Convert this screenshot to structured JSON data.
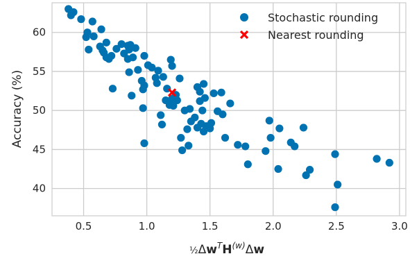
{
  "chart_data": {
    "type": "scatter",
    "xlabel": "½ΔwᵀH⁽ʷ⁾Δw",
    "ylabel": "Accuracy (%)",
    "xlim": [
      0.25,
      3.05
    ],
    "ylim": [
      36.5,
      63.8
    ],
    "x_ticks": [
      0.5,
      1.0,
      1.5,
      2.0,
      2.5,
      3.0
    ],
    "x_tick_labels": [
      "0.5",
      "1.0",
      "1.5",
      "2.0",
      "2.5",
      "3.0"
    ],
    "y_ticks": [
      40,
      45,
      50,
      55,
      60
    ],
    "y_tick_labels": [
      "40",
      "45",
      "50",
      "55",
      "60"
    ],
    "grid": true,
    "legend_position": "top-right",
    "series": [
      {
        "name": "Stochastic rounding",
        "marker": "circle",
        "color": "#0072b2",
        "points": [
          [
            0.38,
            63.0
          ],
          [
            0.4,
            62.2
          ],
          [
            0.42,
            62.6
          ],
          [
            0.48,
            61.7
          ],
          [
            0.52,
            59.4
          ],
          [
            0.53,
            60.0
          ],
          [
            0.54,
            57.8
          ],
          [
            0.57,
            61.4
          ],
          [
            0.58,
            59.5
          ],
          [
            0.63,
            58.2
          ],
          [
            0.64,
            60.4
          ],
          [
            0.65,
            57.7
          ],
          [
            0.66,
            57.4
          ],
          [
            0.68,
            58.7
          ],
          [
            0.68,
            56.8
          ],
          [
            0.7,
            56.6
          ],
          [
            0.72,
            57.0
          ],
          [
            0.73,
            52.8
          ],
          [
            0.76,
            57.9
          ],
          [
            0.8,
            58.5
          ],
          [
            0.82,
            57.3
          ],
          [
            0.85,
            58.3
          ],
          [
            0.85,
            56.6
          ],
          [
            0.86,
            57.8
          ],
          [
            0.86,
            54.9
          ],
          [
            0.87,
            58.4
          ],
          [
            0.88,
            51.9
          ],
          [
            0.89,
            56.8
          ],
          [
            0.91,
            58.0
          ],
          [
            0.93,
            55.2
          ],
          [
            0.96,
            53.8
          ],
          [
            0.97,
            52.7
          ],
          [
            0.97,
            50.3
          ],
          [
            0.98,
            53.2
          ],
          [
            0.98,
            57.0
          ],
          [
            0.98,
            45.8
          ],
          [
            1.01,
            55.8
          ],
          [
            1.04,
            55.5
          ],
          [
            1.07,
            54.2
          ],
          [
            1.08,
            53.5
          ],
          [
            1.09,
            55.1
          ],
          [
            1.11,
            49.4
          ],
          [
            1.12,
            48.2
          ],
          [
            1.13,
            54.3
          ],
          [
            1.15,
            51.3
          ],
          [
            1.16,
            52.8
          ],
          [
            1.18,
            50.7
          ],
          [
            1.19,
            56.5
          ],
          [
            1.2,
            55.7
          ],
          [
            1.2,
            51.5
          ],
          [
            1.21,
            50.6
          ],
          [
            1.23,
            52.0
          ],
          [
            1.24,
            51.3
          ],
          [
            1.26,
            54.1
          ],
          [
            1.27,
            46.5
          ],
          [
            1.28,
            44.9
          ],
          [
            1.3,
            50.0
          ],
          [
            1.32,
            47.6
          ],
          [
            1.33,
            45.5
          ],
          [
            1.34,
            50.2
          ],
          [
            1.35,
            48.6
          ],
          [
            1.38,
            49.1
          ],
          [
            1.4,
            53.0
          ],
          [
            1.4,
            47.8
          ],
          [
            1.42,
            52.4
          ],
          [
            1.42,
            51.2
          ],
          [
            1.43,
            48.3
          ],
          [
            1.44,
            50.0
          ],
          [
            1.45,
            47.3
          ],
          [
            1.45,
            53.4
          ],
          [
            1.46,
            51.6
          ],
          [
            1.47,
            48.0
          ],
          [
            1.5,
            47.7
          ],
          [
            1.51,
            48.4
          ],
          [
            1.53,
            52.2
          ],
          [
            1.56,
            49.9
          ],
          [
            1.59,
            52.3
          ],
          [
            1.6,
            49.5
          ],
          [
            1.62,
            46.5
          ],
          [
            1.66,
            50.9
          ],
          [
            1.72,
            45.6
          ],
          [
            1.78,
            45.4
          ],
          [
            1.8,
            43.1
          ],
          [
            1.94,
            44.8
          ],
          [
            1.97,
            48.7
          ],
          [
            1.98,
            46.5
          ],
          [
            2.04,
            42.5
          ],
          [
            2.05,
            47.7
          ],
          [
            2.14,
            45.9
          ],
          [
            2.17,
            45.4
          ],
          [
            2.24,
            47.8
          ],
          [
            2.26,
            41.7
          ],
          [
            2.29,
            42.4
          ],
          [
            2.49,
            44.4
          ],
          [
            2.49,
            37.6
          ],
          [
            2.51,
            40.5
          ],
          [
            2.82,
            43.8
          ],
          [
            2.92,
            43.3
          ]
        ]
      },
      {
        "name": "Nearest rounding",
        "marker": "x",
        "color": "#ff0000",
        "points": [
          [
            1.2,
            52.3
          ]
        ]
      }
    ]
  }
}
